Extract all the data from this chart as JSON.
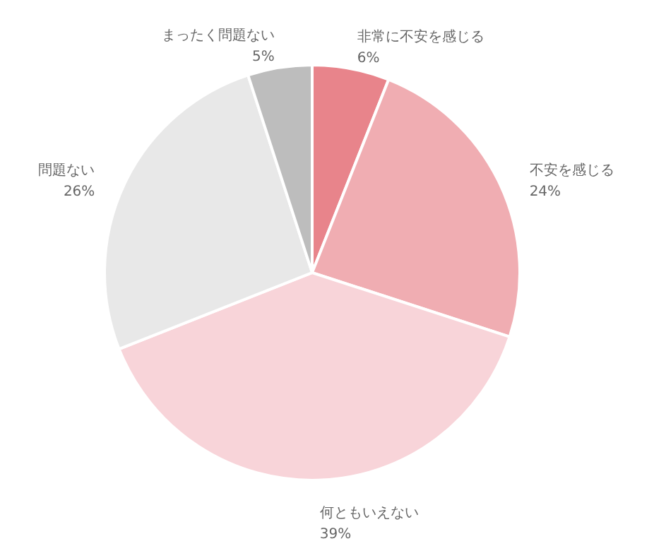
{
  "chart_data": {
    "type": "pie",
    "categories": [
      "非常に不安を感じる",
      "不安を感じる",
      "何ともいえない",
      "問題ない",
      "まったく問題ない"
    ],
    "values": [
      6,
      24,
      39,
      26,
      5
    ],
    "colors": [
      "#e8848b",
      "#f0adb2",
      "#f8d4d9",
      "#e8e8e8",
      "#bdbdbd"
    ],
    "value_labels": [
      "6%",
      "24%",
      "39%",
      "26%",
      "5%"
    ]
  }
}
